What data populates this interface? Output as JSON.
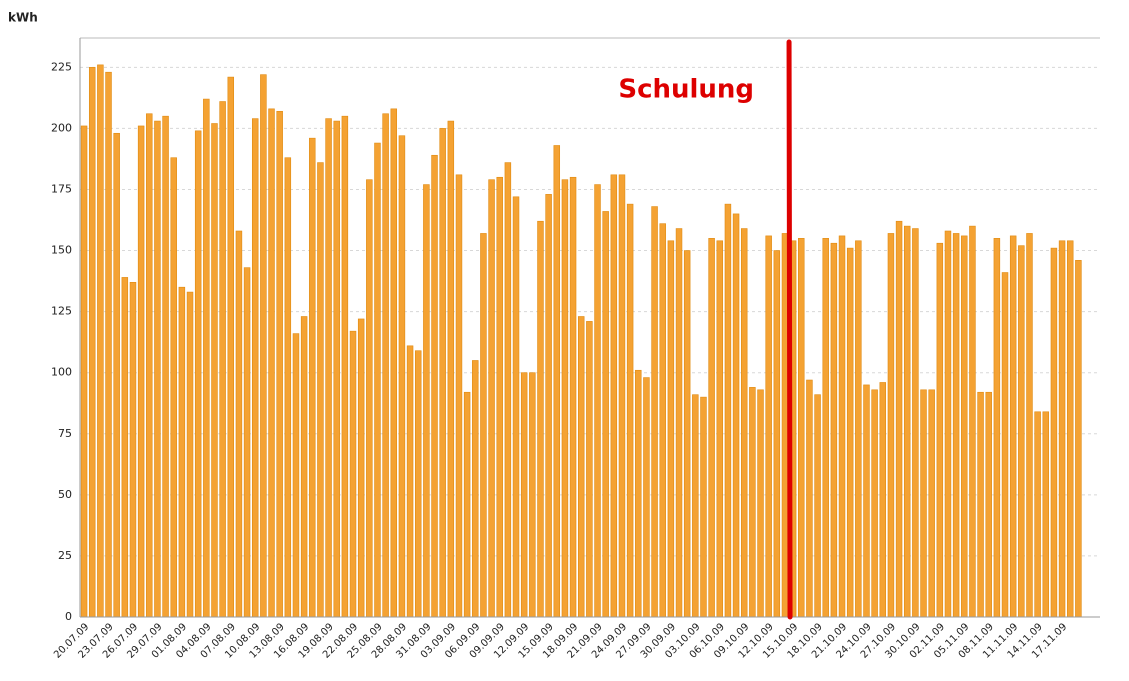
{
  "chart_data": {
    "type": "bar",
    "y_label": "kWh",
    "color": "#f4a233",
    "ylim": [
      0,
      237
    ],
    "yticks": [
      0,
      25,
      50,
      75,
      100,
      125,
      150,
      175,
      200,
      225
    ],
    "grid": true,
    "annotation": {
      "text": "Schulung",
      "at": "15.10.09",
      "color": "#dd0000"
    },
    "categories": [
      "20.07.09",
      null,
      null,
      "23.07.09",
      null,
      null,
      "26.07.09",
      null,
      null,
      "29.07.09",
      null,
      null,
      "01.08.09",
      null,
      null,
      "04.08.09",
      null,
      null,
      "07.08.09",
      null,
      null,
      "10.08.09",
      null,
      null,
      "13.08.09",
      null,
      null,
      "16.08.09",
      null,
      null,
      "19.08.09",
      null,
      null,
      "22.08.09",
      null,
      null,
      "25.08.09",
      null,
      null,
      "28.08.09",
      null,
      null,
      "31.08.09",
      null,
      null,
      "03.09.09",
      null,
      null,
      "06.09.09",
      null,
      null,
      "09.09.09",
      null,
      null,
      "12.09.09",
      null,
      null,
      "15.09.09",
      null,
      null,
      "18.09.09",
      null,
      null,
      "21.09.09",
      null,
      null,
      "24.09.09",
      null,
      null,
      "27.09.09",
      null,
      null,
      "30.09.09",
      null,
      null,
      "03.10.09",
      null,
      null,
      "06.10.09",
      null,
      null,
      "09.10.09",
      null,
      null,
      "12.10.09",
      null,
      null,
      "15.10.09",
      null,
      null,
      "18.10.09",
      null,
      null,
      "21.10.09",
      null,
      null,
      "24.10.09",
      null,
      null,
      "27.10.09",
      null,
      null,
      "30.10.09",
      null,
      null,
      "02.11.09",
      null,
      null,
      "05.11.09",
      null,
      null,
      "08.11.09",
      null,
      null,
      "11.11.09",
      null,
      null,
      "14.11.09",
      null,
      null,
      "17.11.09",
      null,
      null
    ],
    "values": [
      201,
      225,
      226,
      223,
      198,
      139,
      137,
      201,
      206,
      203,
      205,
      188,
      135,
      133,
      199,
      212,
      202,
      211,
      221,
      158,
      143,
      204,
      222,
      208,
      207,
      188,
      116,
      123,
      196,
      186,
      204,
      203,
      205,
      117,
      122,
      179,
      194,
      206,
      208,
      197,
      111,
      109,
      177,
      189,
      200,
      203,
      181,
      92,
      105,
      157,
      179,
      180,
      186,
      172,
      100,
      100,
      162,
      173,
      193,
      179,
      180,
      123,
      121,
      177,
      166,
      181,
      181,
      169,
      101,
      98,
      168,
      161,
      154,
      159,
      150,
      91,
      90,
      155,
      154,
      169,
      165,
      159,
      94,
      93,
      156,
      150,
      157,
      154,
      155,
      97,
      91,
      155,
      153,
      156,
      151,
      154,
      95,
      93,
      96,
      157,
      162,
      160,
      159,
      93,
      93,
      153,
      158,
      157,
      156,
      160,
      92,
      92,
      155,
      141,
      156,
      152,
      157,
      84,
      84,
      151,
      154,
      154,
      146
    ]
  }
}
